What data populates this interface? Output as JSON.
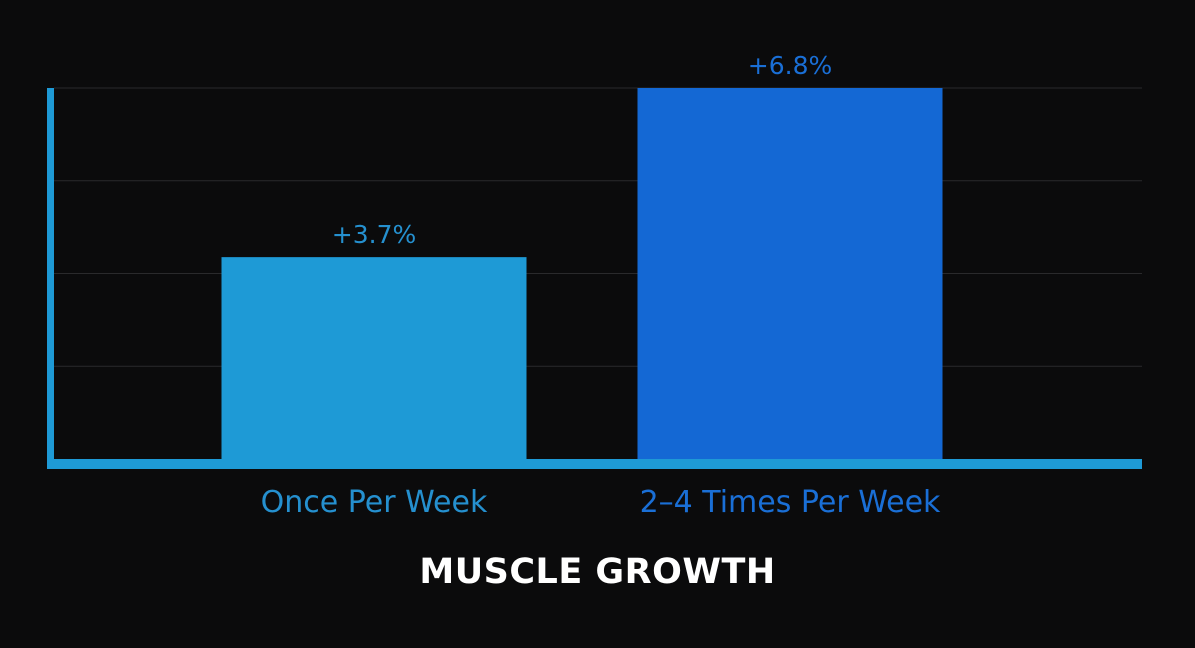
{
  "chart_data": {
    "type": "bar",
    "title": "MUSCLE GROWTH",
    "categories": [
      "Once Per Week",
      "2–4 Times Per Week"
    ],
    "values": [
      3.7,
      6.8
    ],
    "data_labels": [
      "+3.7%",
      "+6.8%"
    ],
    "ylim": [
      0,
      6.8
    ],
    "grid": true,
    "colors": {
      "bars": [
        "#1e9ad6",
        "#1468d4"
      ],
      "labels": [
        "#2590cf",
        "#1a6fd6"
      ],
      "axis": "#1e9ad6",
      "grid": "#2a2a2c",
      "title": "#ffffff",
      "background": "#0b0b0c"
    }
  }
}
